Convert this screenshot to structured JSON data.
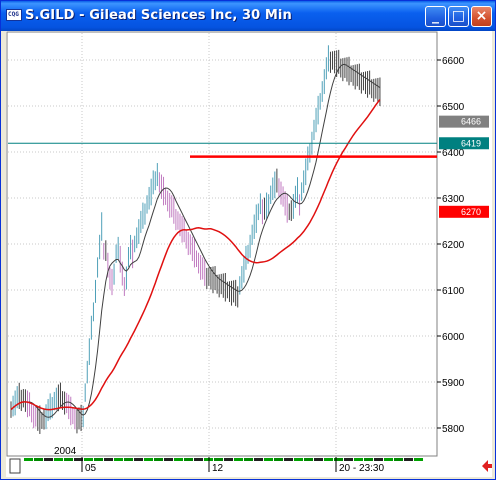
{
  "window": {
    "title": "S.GILD - Gilead Sciences Inc, 30 Min",
    "app_icon_text": "CQG",
    "controls": {
      "minimize_glyph": "_",
      "maximize_glyph": "□",
      "close_glyph": "×"
    }
  },
  "chart_data": {
    "type": "bar",
    "title": "S.GILD - Gilead Sciences Inc, 30 Min",
    "ylim": [
      5770,
      6660
    ],
    "price_ticks": [
      "6600",
      "6500",
      "6400",
      "6300",
      "6200",
      "6100",
      "6000",
      "5900",
      "5800"
    ],
    "price_tick_values": [
      6600,
      6500,
      6400,
      6300,
      6200,
      6100,
      6000,
      5900,
      5800
    ],
    "date_ticks": [
      "05",
      "12",
      "20 - 23:30"
    ],
    "year_label": "2004",
    "markers": {
      "last_price": {
        "label": "6466",
        "value": 6466,
        "color": "#808080"
      },
      "horizontal_line": {
        "label": "6419",
        "value": 6419,
        "color": "#008080"
      },
      "ma_value": {
        "label": "6270",
        "value": 6270,
        "color": "#ff0000"
      },
      "resistance": {
        "value": 6390,
        "color": "#ff0000"
      }
    },
    "colors": {
      "up": "#4fa0b8",
      "down": "#c07ac0",
      "neutral": "#404040",
      "ma_fast": "#404040",
      "ma_slow": "#e01010"
    },
    "grid": true,
    "legend": "none"
  }
}
